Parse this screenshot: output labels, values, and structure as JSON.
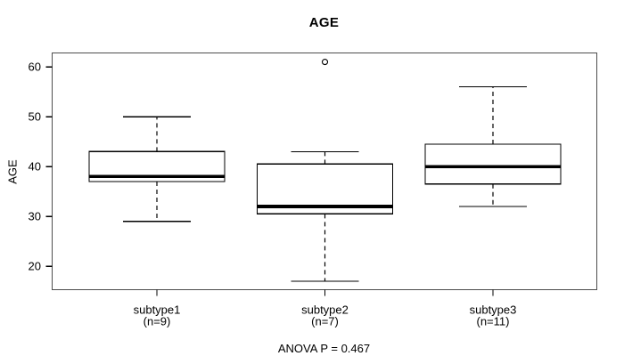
{
  "chart_data": {
    "type": "boxplot",
    "title": "AGE",
    "xlabel": "",
    "ylabel": "AGE",
    "annotation": "ANOVA P = 0.467",
    "ylim": [
      15.3,
      62.8
    ],
    "yticks": [
      20,
      30,
      40,
      50,
      60
    ],
    "grid": false,
    "legend": null,
    "groups": [
      {
        "label": "subtype1",
        "sublabel": "(n=9)",
        "n": 9,
        "stats": {
          "whisker_low": 29,
          "q1": 37,
          "median": 38,
          "q3": 43,
          "whisker_high": 50
        },
        "outliers": []
      },
      {
        "label": "subtype2",
        "sublabel": "(n=7)",
        "n": 7,
        "stats": {
          "whisker_low": 17,
          "q1": 30.5,
          "median": 32,
          "q3": 40.5,
          "whisker_high": 43
        },
        "outliers": [
          61
        ]
      },
      {
        "label": "subtype3",
        "sublabel": "(n=11)",
        "n": 11,
        "stats": {
          "whisker_low": 32,
          "q1": 36.5,
          "median": 40,
          "q3": 44.5,
          "whisker_high": 56
        },
        "outliers": []
      }
    ],
    "colors": {
      "stroke": "#000000",
      "frame": "#4d4d4d",
      "box_fill": "#ffffff",
      "background": "#ffffff",
      "text": "#000000"
    }
  }
}
